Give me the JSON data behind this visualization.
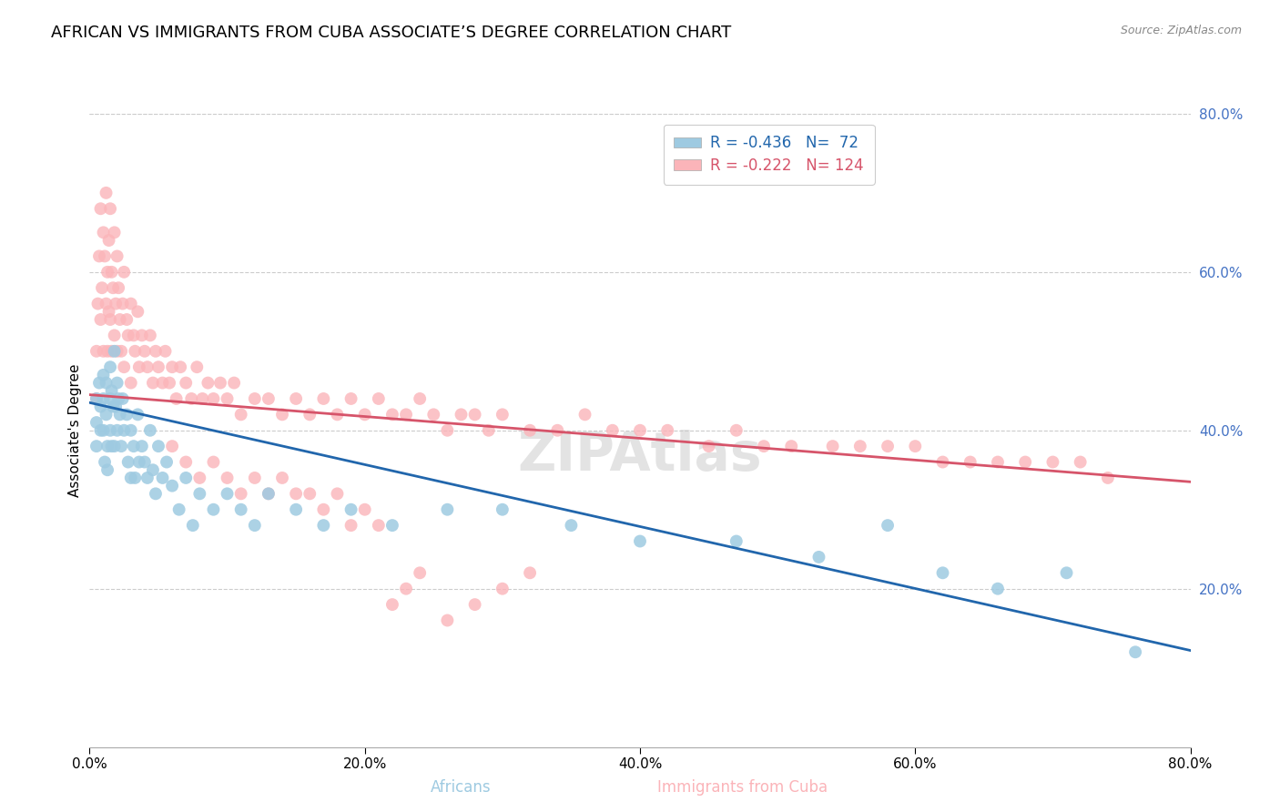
{
  "title": "AFRICAN VS IMMIGRANTS FROM CUBA ASSOCIATE’S DEGREE CORRELATION CHART",
  "source": "Source: ZipAtlas.com",
  "xlabel_africans": "Africans",
  "xlabel_cuba": "Immigrants from Cuba",
  "ylabel": "Associate's Degree",
  "r_africans": -0.436,
  "n_africans": 72,
  "r_cuba": -0.222,
  "n_cuba": 124,
  "xlim": [
    0.0,
    0.8
  ],
  "ylim": [
    0.0,
    0.8
  ],
  "xticks": [
    0.0,
    0.2,
    0.4,
    0.6,
    0.8
  ],
  "yticks": [
    0.2,
    0.4,
    0.6,
    0.8
  ],
  "xtick_labels": [
    "0.0%",
    "20.0%",
    "40.0%",
    "60.0%",
    "80.0%"
  ],
  "ytick_labels": [
    "20.0%",
    "40.0%",
    "60.0%",
    "80.0%"
  ],
  "color_africans": "#9ecae1",
  "color_cuba": "#fbb4b9",
  "line_color_africans": "#2166ac",
  "line_color_cuba": "#d6546a",
  "background_color": "#ffffff",
  "title_fontsize": 13,
  "axis_label_fontsize": 11,
  "tick_fontsize": 11,
  "legend_fontsize": 12,
  "watermark_text": "ZIPAtlas",
  "blue_line_x0": 0.0,
  "blue_line_y0": 0.435,
  "blue_line_x1": 0.8,
  "blue_line_y1": 0.122,
  "pink_line_x0": 0.0,
  "pink_line_y0": 0.445,
  "pink_line_x1": 0.8,
  "pink_line_y1": 0.335,
  "africans_x": [
    0.005,
    0.005,
    0.005,
    0.007,
    0.008,
    0.008,
    0.01,
    0.01,
    0.01,
    0.011,
    0.012,
    0.012,
    0.013,
    0.013,
    0.015,
    0.015,
    0.015,
    0.016,
    0.016,
    0.017,
    0.018,
    0.018,
    0.019,
    0.02,
    0.02,
    0.021,
    0.022,
    0.023,
    0.024,
    0.025,
    0.027,
    0.028,
    0.03,
    0.03,
    0.032,
    0.033,
    0.035,
    0.036,
    0.038,
    0.04,
    0.042,
    0.044,
    0.046,
    0.048,
    0.05,
    0.053,
    0.056,
    0.06,
    0.065,
    0.07,
    0.075,
    0.08,
    0.09,
    0.1,
    0.11,
    0.12,
    0.13,
    0.15,
    0.17,
    0.19,
    0.22,
    0.26,
    0.3,
    0.35,
    0.4,
    0.47,
    0.53,
    0.58,
    0.62,
    0.66,
    0.71,
    0.76
  ],
  "africans_y": [
    0.44,
    0.41,
    0.38,
    0.46,
    0.43,
    0.4,
    0.47,
    0.44,
    0.4,
    0.36,
    0.46,
    0.42,
    0.38,
    0.35,
    0.48,
    0.44,
    0.4,
    0.45,
    0.38,
    0.43,
    0.5,
    0.38,
    0.43,
    0.46,
    0.4,
    0.44,
    0.42,
    0.38,
    0.44,
    0.4,
    0.42,
    0.36,
    0.4,
    0.34,
    0.38,
    0.34,
    0.42,
    0.36,
    0.38,
    0.36,
    0.34,
    0.4,
    0.35,
    0.32,
    0.38,
    0.34,
    0.36,
    0.33,
    0.3,
    0.34,
    0.28,
    0.32,
    0.3,
    0.32,
    0.3,
    0.28,
    0.32,
    0.3,
    0.28,
    0.3,
    0.28,
    0.3,
    0.3,
    0.28,
    0.26,
    0.26,
    0.24,
    0.28,
    0.22,
    0.2,
    0.22,
    0.12
  ],
  "cuba_x": [
    0.005,
    0.005,
    0.006,
    0.007,
    0.008,
    0.008,
    0.009,
    0.01,
    0.01,
    0.011,
    0.012,
    0.012,
    0.013,
    0.013,
    0.014,
    0.014,
    0.015,
    0.015,
    0.016,
    0.016,
    0.017,
    0.018,
    0.018,
    0.019,
    0.02,
    0.02,
    0.021,
    0.022,
    0.023,
    0.024,
    0.025,
    0.025,
    0.027,
    0.028,
    0.03,
    0.03,
    0.032,
    0.033,
    0.035,
    0.036,
    0.038,
    0.04,
    0.042,
    0.044,
    0.046,
    0.048,
    0.05,
    0.053,
    0.055,
    0.058,
    0.06,
    0.063,
    0.066,
    0.07,
    0.074,
    0.078,
    0.082,
    0.086,
    0.09,
    0.095,
    0.1,
    0.105,
    0.11,
    0.12,
    0.13,
    0.14,
    0.15,
    0.16,
    0.17,
    0.18,
    0.19,
    0.2,
    0.21,
    0.22,
    0.23,
    0.24,
    0.25,
    0.26,
    0.27,
    0.28,
    0.29,
    0.3,
    0.32,
    0.34,
    0.36,
    0.38,
    0.4,
    0.42,
    0.45,
    0.47,
    0.49,
    0.51,
    0.54,
    0.56,
    0.58,
    0.6,
    0.62,
    0.64,
    0.66,
    0.68,
    0.7,
    0.72,
    0.74,
    0.06,
    0.07,
    0.08,
    0.09,
    0.1,
    0.11,
    0.12,
    0.13,
    0.14,
    0.15,
    0.16,
    0.17,
    0.18,
    0.19,
    0.2,
    0.21,
    0.22,
    0.23,
    0.24,
    0.26,
    0.28,
    0.3,
    0.32
  ],
  "cuba_y": [
    0.5,
    0.44,
    0.56,
    0.62,
    0.68,
    0.54,
    0.58,
    0.65,
    0.5,
    0.62,
    0.7,
    0.56,
    0.6,
    0.5,
    0.64,
    0.55,
    0.68,
    0.54,
    0.6,
    0.5,
    0.58,
    0.65,
    0.52,
    0.56,
    0.62,
    0.5,
    0.58,
    0.54,
    0.5,
    0.56,
    0.6,
    0.48,
    0.54,
    0.52,
    0.56,
    0.46,
    0.52,
    0.5,
    0.55,
    0.48,
    0.52,
    0.5,
    0.48,
    0.52,
    0.46,
    0.5,
    0.48,
    0.46,
    0.5,
    0.46,
    0.48,
    0.44,
    0.48,
    0.46,
    0.44,
    0.48,
    0.44,
    0.46,
    0.44,
    0.46,
    0.44,
    0.46,
    0.42,
    0.44,
    0.44,
    0.42,
    0.44,
    0.42,
    0.44,
    0.42,
    0.44,
    0.42,
    0.44,
    0.42,
    0.42,
    0.44,
    0.42,
    0.4,
    0.42,
    0.42,
    0.4,
    0.42,
    0.4,
    0.4,
    0.42,
    0.4,
    0.4,
    0.4,
    0.38,
    0.4,
    0.38,
    0.38,
    0.38,
    0.38,
    0.38,
    0.38,
    0.36,
    0.36,
    0.36,
    0.36,
    0.36,
    0.36,
    0.34,
    0.38,
    0.36,
    0.34,
    0.36,
    0.34,
    0.32,
    0.34,
    0.32,
    0.34,
    0.32,
    0.32,
    0.3,
    0.32,
    0.28,
    0.3,
    0.28,
    0.18,
    0.2,
    0.22,
    0.16,
    0.18,
    0.2,
    0.22
  ]
}
